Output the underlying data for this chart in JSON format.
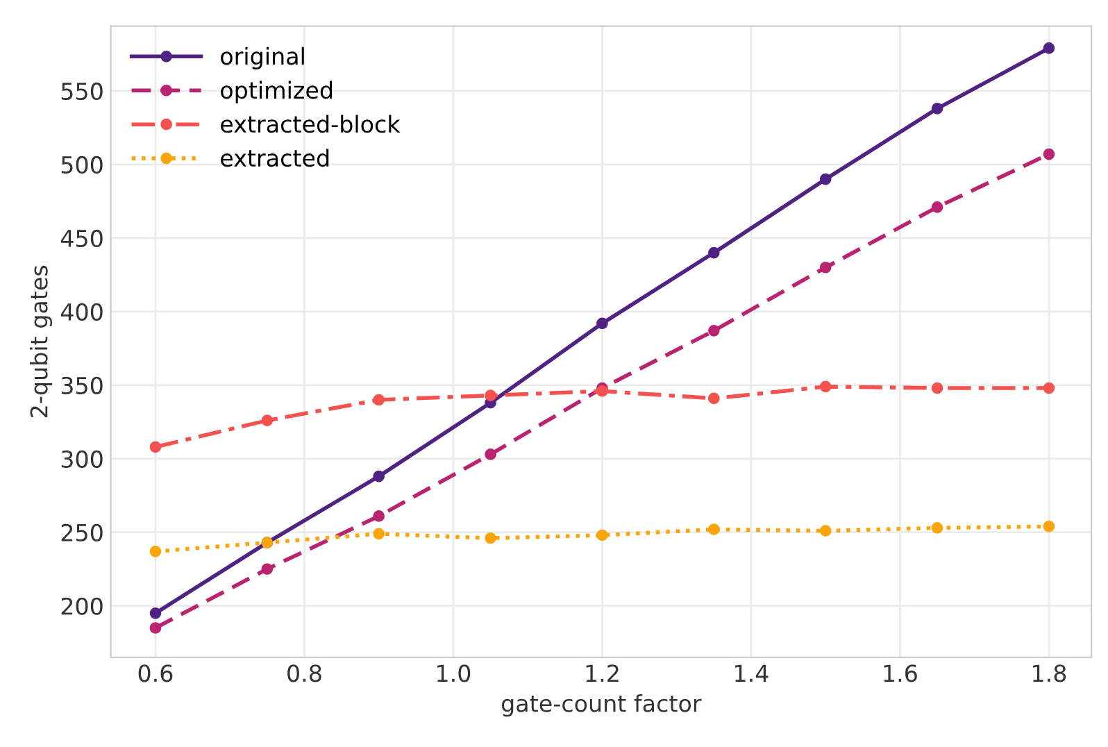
{
  "chart_data": {
    "type": "line",
    "xlabel": "gate-count factor",
    "ylabel": "2-qubit gates",
    "x": [
      0.6,
      0.75,
      0.9,
      1.05,
      1.2,
      1.35,
      1.5,
      1.65,
      1.8
    ],
    "series": [
      {
        "name": "original",
        "color": "#4f2283",
        "line_style": "solid",
        "values": [
          195,
          243,
          288,
          338,
          392,
          440,
          490,
          538,
          579
        ]
      },
      {
        "name": "optimized",
        "color": "#b9236f",
        "line_style": "dashed",
        "values": [
          185,
          225,
          261,
          303,
          348,
          387,
          430,
          471,
          507
        ]
      },
      {
        "name": "extracted-block",
        "color": "#f4524f",
        "line_style": "dashdot",
        "values": [
          308,
          326,
          340,
          343,
          346,
          341,
          349,
          348,
          348
        ]
      },
      {
        "name": "extracted",
        "color": "#fca50a",
        "line_style": "dotted",
        "values": [
          237,
          243,
          249,
          246,
          248,
          252,
          251,
          253,
          254
        ]
      }
    ],
    "xlim": [
      0.54,
      1.857
    ],
    "ylim": [
      165,
      594
    ],
    "xticks": [
      0.6,
      0.8,
      {
        "value": 1.0,
        "label": "1.0"
      },
      1.2,
      1.4,
      1.6,
      1.8
    ],
    "yticks": [
      200,
      250,
      300,
      350,
      400,
      450,
      500,
      550
    ],
    "grid": true,
    "legend": "top left",
    "marker": "circle"
  }
}
